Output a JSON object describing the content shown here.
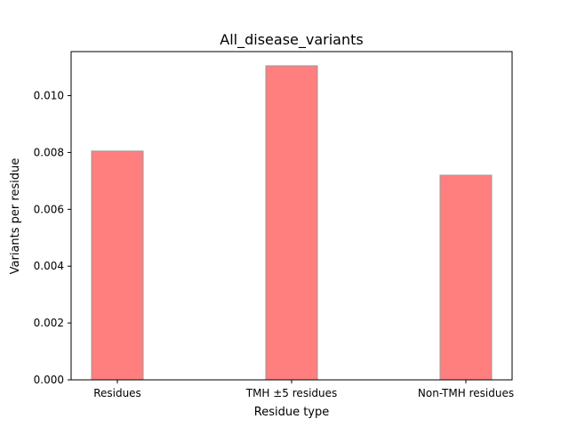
{
  "chart_data": {
    "type": "bar",
    "title": "All_disease_variants",
    "xlabel": "Residue type",
    "ylabel": "Variants per residue",
    "categories": [
      "Residues",
      "TMH ±5 residues",
      "Non-TMH residues"
    ],
    "values": [
      0.00805,
      0.01105,
      0.0072
    ],
    "ylim": [
      0,
      0.01155
    ],
    "yticks": [
      "0.000",
      "0.002",
      "0.004",
      "0.006",
      "0.008",
      "0.010"
    ],
    "ytick_values": [
      0,
      0.002,
      0.004,
      0.006,
      0.008,
      0.01
    ],
    "grid": false,
    "legend": "none",
    "bar_color": "#ff7f7f",
    "bar_edge_color": "#999999"
  }
}
